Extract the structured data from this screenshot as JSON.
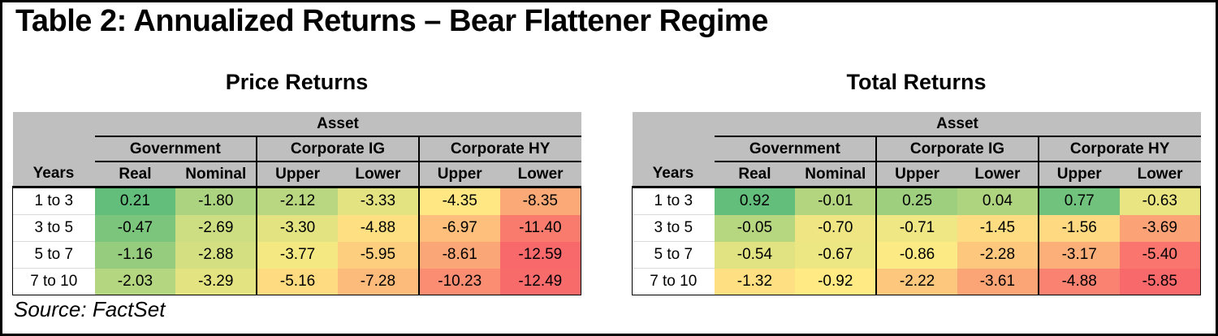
{
  "title": "Table 2: Annualized Returns – Bear Flattener Regime",
  "source_note": "Source: FactSet",
  "colors": {
    "header_bg": "#BFBFBF",
    "frame_border": "#000000",
    "row_divider": "#D9D9D9",
    "text": "#000000"
  },
  "chart_data": [
    {
      "type": "heatmap",
      "title": "Price Returns",
      "row_header": "Years",
      "col_group_header": "Asset",
      "col_groups": [
        {
          "label": "Government",
          "columns": [
            "Real",
            "Nominal"
          ]
        },
        {
          "label": "Corporate IG",
          "columns": [
            "Upper",
            "Lower"
          ]
        },
        {
          "label": "Corporate HY",
          "columns": [
            "Upper",
            "Lower"
          ]
        }
      ],
      "rows": [
        "1 to 3",
        "3 to 5",
        "5 to 7",
        "7 to 10"
      ],
      "values": [
        [
          0.21,
          -1.8,
          -2.12,
          -3.33,
          -4.35,
          -8.35
        ],
        [
          -0.47,
          -2.69,
          -3.3,
          -4.88,
          -6.97,
          -11.4
        ],
        [
          -1.16,
          -2.88,
          -3.77,
          -5.95,
          -8.61,
          -12.59
        ],
        [
          -2.03,
          -3.29,
          -5.16,
          -7.28,
          -10.23,
          -12.49
        ]
      ],
      "value_format": "2dp",
      "color_scale": {
        "min_color": "#F8696B",
        "mid_color": "#FFEB84",
        "max_color": "#63BE7B",
        "midpoint": "50th-percentile",
        "applies": "per-table"
      }
    },
    {
      "type": "heatmap",
      "title": "Total Returns",
      "row_header": "Years",
      "col_group_header": "Asset",
      "col_groups": [
        {
          "label": "Government",
          "columns": [
            "Real",
            "Nominal"
          ]
        },
        {
          "label": "Corporate IG",
          "columns": [
            "Upper",
            "Lower"
          ]
        },
        {
          "label": "Corporate HY",
          "columns": [
            "Upper",
            "Lower"
          ]
        }
      ],
      "rows": [
        "1 to 3",
        "3 to 5",
        "5 to 7",
        "7 to 10"
      ],
      "values": [
        [
          0.92,
          -0.01,
          0.25,
          0.04,
          0.77,
          -0.63
        ],
        [
          -0.05,
          -0.7,
          -0.71,
          -1.45,
          -1.56,
          -3.69
        ],
        [
          -0.54,
          -0.67,
          -0.86,
          -2.28,
          -3.17,
          -5.4
        ],
        [
          -1.32,
          -0.92,
          -2.22,
          -3.61,
          -4.88,
          -5.85
        ]
      ],
      "value_format": "2dp",
      "color_scale": {
        "min_color": "#F8696B",
        "mid_color": "#FFEB84",
        "max_color": "#63BE7B",
        "midpoint": "50th-percentile",
        "applies": "per-table"
      }
    }
  ]
}
